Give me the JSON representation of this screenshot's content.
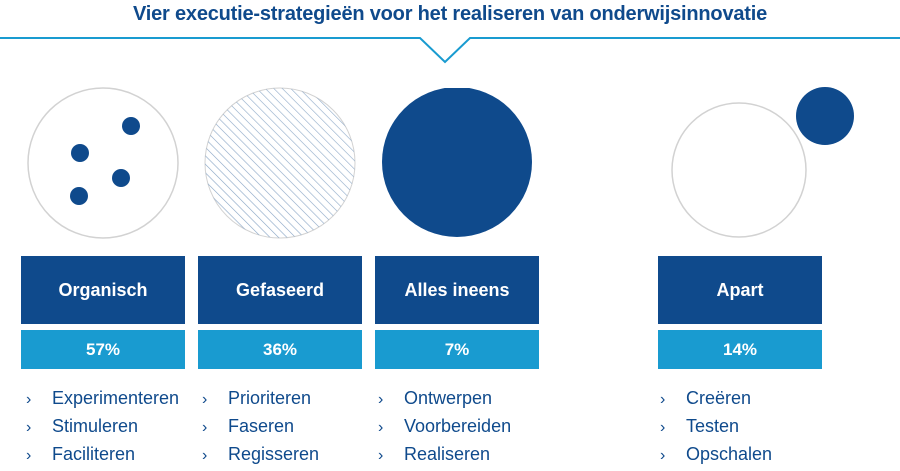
{
  "title": "Vier executie-strategieën voor het realiseren van onderwijsinnovatie",
  "colors": {
    "dark_blue": "#0f4a8c",
    "light_blue": "#199bd0",
    "outline": "#d2d2d2"
  },
  "strategies": [
    {
      "label": "Organisch",
      "percent": "57%",
      "items": [
        "Experimenteren",
        "Stimuleren",
        "Faciliteren"
      ]
    },
    {
      "label": "Gefaseerd",
      "percent": "36%",
      "items": [
        "Prioriteren",
        "Faseren",
        "Regisseren"
      ]
    },
    {
      "label": "Alles ineens",
      "percent": "7%",
      "items": [
        "Ontwerpen",
        "Voorbereiden",
        "Realiseren"
      ]
    },
    {
      "label": "Apart",
      "percent": "14%",
      "items": [
        "Creëren",
        "Testen",
        "Opschalen"
      ]
    }
  ],
  "bullet": "›"
}
